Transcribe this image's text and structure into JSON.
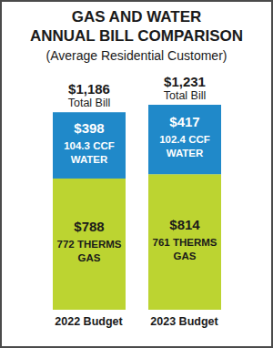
{
  "chart_data": {
    "type": "bar",
    "title": "GAS AND WATER\nANNUAL BILL COMPARISON",
    "subtitle": "(Average Residential Customer)",
    "categories": [
      "2022 Budget",
      "2023 Budget"
    ],
    "stacked": true,
    "data_labels": true,
    "tick_labels": "x",
    "series": [
      {
        "name": "GAS",
        "color": "#bcd431",
        "values": [
          788,
          814
        ],
        "value_labels": [
          "$788",
          "$814"
        ],
        "quantity_labels": [
          "772 THERMS",
          "761 THERMS"
        ]
      },
      {
        "name": "WATER",
        "color": "#2089c9",
        "values": [
          398,
          417
        ],
        "value_labels": [
          "$398",
          "$417"
        ],
        "quantity_labels": [
          "104.3 CCF",
          "102.4 CCF"
        ]
      }
    ],
    "totals": [
      1186,
      1231
    ],
    "total_labels": [
      "$1,186",
      "$1,231"
    ],
    "total_caption": "Total Bill"
  }
}
